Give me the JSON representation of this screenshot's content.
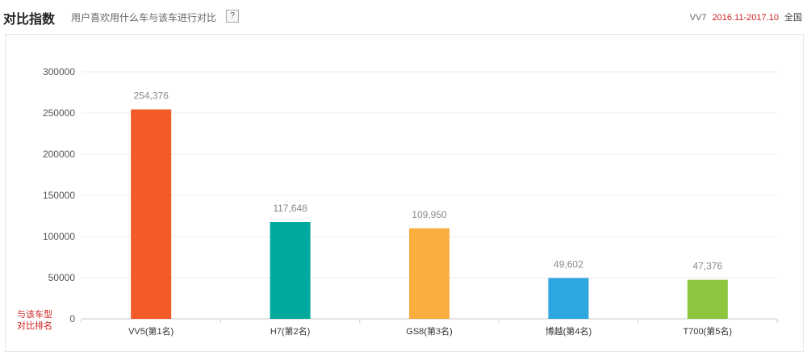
{
  "header": {
    "title": "对比指数",
    "subtitle": "用户喜欢用什么车与该车进行对比",
    "help_label": "?",
    "model": "VV7",
    "period": "2016.11-2017.10",
    "region": "全国"
  },
  "chart_data": {
    "type": "bar",
    "categories": [
      "VV5(第1名)",
      "H7(第2名)",
      "GS8(第3名)",
      "博越(第4名)",
      "T700(第5名)"
    ],
    "values": [
      254376,
      117648,
      109950,
      49602,
      47376
    ],
    "value_labels": [
      "254,376",
      "117,648",
      "109,950",
      "49,602",
      "47,376"
    ],
    "colors": [
      "#f25a27",
      "#00a99d",
      "#f9ae3f",
      "#2ea7e0",
      "#8cc63f"
    ],
    "ylim": [
      0,
      300000
    ],
    "yticks": [
      0,
      50000,
      100000,
      150000,
      200000,
      250000,
      300000
    ],
    "ytick_labels": [
      "0",
      "50000",
      "100000",
      "150000",
      "200000",
      "250000",
      "300000"
    ],
    "grid": true,
    "axis_note_lines": [
      "与该车型",
      "对比排名"
    ],
    "axis_note_color": "#d02020"
  }
}
